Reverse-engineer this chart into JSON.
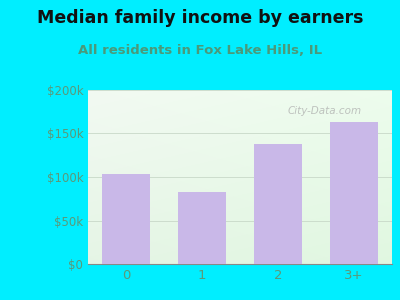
{
  "title": "Median family income by earners",
  "subtitle": "All residents in Fox Lake Hills, IL",
  "categories": [
    "0",
    "1",
    "2",
    "3+"
  ],
  "values": [
    103000,
    83000,
    138000,
    163000
  ],
  "bar_color": "#c9b8e8",
  "bar_edge_color": "#c9b8e8",
  "ylim": [
    0,
    200000
  ],
  "yticks": [
    0,
    50000,
    100000,
    150000,
    200000
  ],
  "ytick_labels": [
    "$0",
    "$50k",
    "$100k",
    "$150k",
    "$200k"
  ],
  "background_outer": "#00eeff",
  "title_color": "#111111",
  "subtitle_color": "#4a9a7a",
  "tick_color": "#5a9a7a",
  "title_fontsize": 12.5,
  "subtitle_fontsize": 9.5,
  "watermark": "City-Data.com"
}
